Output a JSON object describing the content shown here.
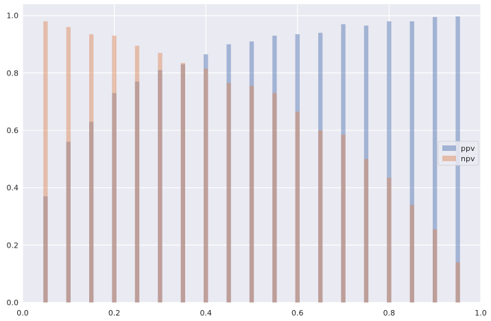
{
  "chart_data": {
    "type": "bar",
    "xlim": [
      0.0,
      1.0
    ],
    "ylim": [
      0.0,
      1.04
    ],
    "xticks": [
      "0.0",
      "0.2",
      "0.4",
      "0.6",
      "0.8",
      "1.0"
    ],
    "yticks": [
      "0.0",
      "0.2",
      "0.4",
      "0.6",
      "0.8",
      "1.0"
    ],
    "x": [
      0.05,
      0.1,
      0.15,
      0.2,
      0.25,
      0.3,
      0.35,
      0.4,
      0.45,
      0.5,
      0.55,
      0.6,
      0.65,
      0.7,
      0.75,
      0.8,
      0.85,
      0.9,
      0.95
    ],
    "bar_width": 0.0095,
    "series": [
      {
        "name": "ppv",
        "color": "#4c72b0",
        "opacity": 0.45,
        "values": [
          0.37,
          0.56,
          0.63,
          0.73,
          0.77,
          0.81,
          0.83,
          0.865,
          0.9,
          0.91,
          0.93,
          0.935,
          0.94,
          0.97,
          0.965,
          0.98,
          0.98,
          0.995,
          0.997
        ]
      },
      {
        "name": "npv",
        "color": "#dd8452",
        "opacity": 0.45,
        "values": [
          0.98,
          0.96,
          0.935,
          0.93,
          0.895,
          0.87,
          0.835,
          0.815,
          0.765,
          0.755,
          0.73,
          0.665,
          0.6,
          0.585,
          0.5,
          0.435,
          0.34,
          0.255,
          0.14
        ]
      }
    ],
    "grid": true,
    "background": "#eaeaf2",
    "legend_position": "center-right"
  }
}
